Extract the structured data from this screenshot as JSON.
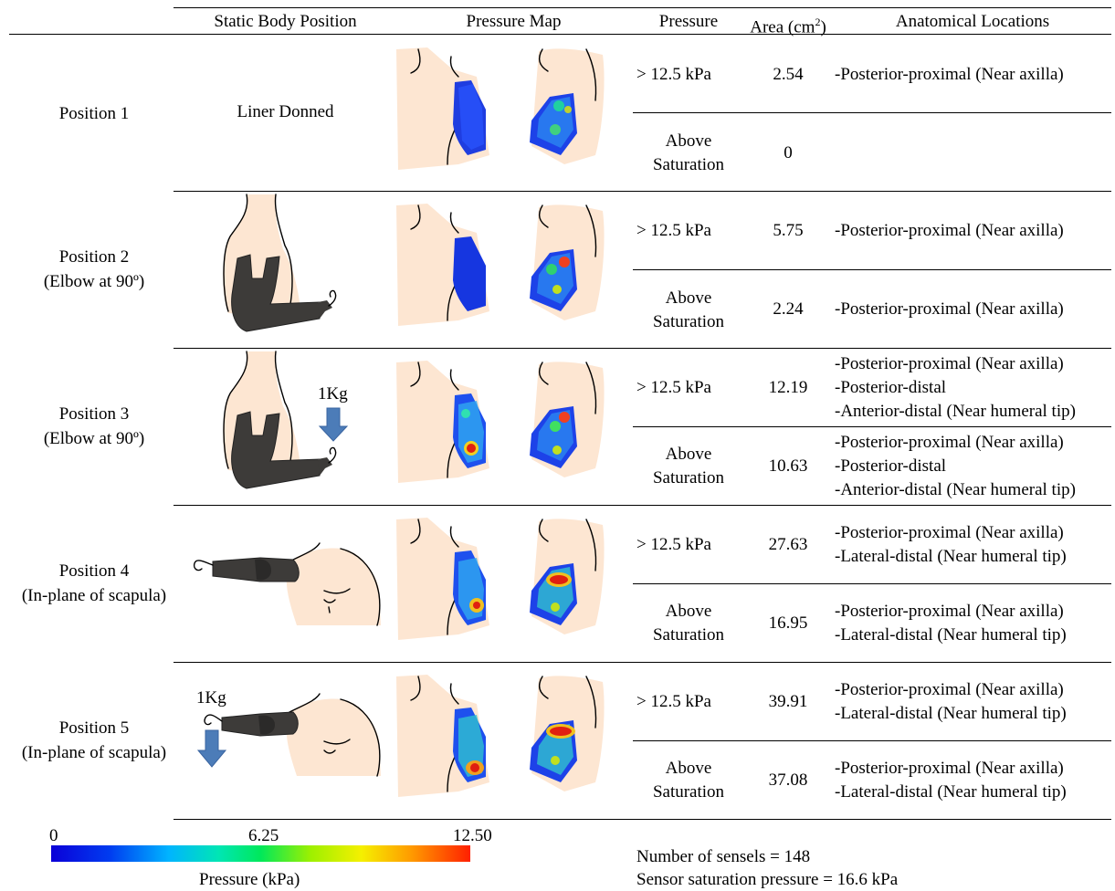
{
  "headers": {
    "static_body_position": "Static Body Position",
    "pressure_map": "Pressure Map",
    "pressure": "Pressure",
    "area_prefix": "Area (cm",
    "area_sup": "2",
    "area_suffix": ")",
    "anatomical_locations": "Anatomical Locations"
  },
  "rows": [
    {
      "position_label": "Position 1",
      "position_sub": "",
      "body_position_text": "Liner Donned",
      "weight_label": "",
      "above": {
        "pressure": "> 12.5 kPa",
        "area": "2.54",
        "locations": [
          "-Posterior-proximal (Near axilla)"
        ]
      },
      "saturation": {
        "pressure_line1": "Above",
        "pressure_line2": "Saturation",
        "area": "0",
        "locations": []
      }
    },
    {
      "position_label": "Position 2",
      "position_sub": "(Elbow at 90º)",
      "body_position_text": "",
      "weight_label": "",
      "above": {
        "pressure": "> 12.5 kPa",
        "area": "5.75",
        "locations": [
          "-Posterior-proximal (Near axilla)"
        ]
      },
      "saturation": {
        "pressure_line1": "Above",
        "pressure_line2": "Saturation",
        "area": "2.24",
        "locations": [
          "-Posterior-proximal (Near axilla)"
        ]
      }
    },
    {
      "position_label": "Position 3",
      "position_sub": "(Elbow at 90º)",
      "body_position_text": "",
      "weight_label": "1Kg",
      "above": {
        "pressure": "> 12.5 kPa",
        "area": "12.19",
        "locations": [
          "-Posterior-proximal (Near axilla)",
          "-Posterior-distal",
          "-Anterior-distal (Near humeral tip)"
        ]
      },
      "saturation": {
        "pressure_line1": "Above",
        "pressure_line2": "Saturation",
        "area": "10.63",
        "locations": [
          "-Posterior-proximal (Near axilla)",
          "-Posterior-distal",
          "-Anterior-distal (Near humeral tip)"
        ]
      }
    },
    {
      "position_label": "Position 4",
      "position_sub": "(In-plane of scapula)",
      "body_position_text": "",
      "weight_label": "",
      "above": {
        "pressure": "> 12.5 kPa",
        "area": "27.63",
        "locations": [
          "-Posterior-proximal (Near axilla)",
          "-Lateral-distal (Near humeral tip)"
        ]
      },
      "saturation": {
        "pressure_line1": "Above",
        "pressure_line2": "Saturation",
        "area": "16.95",
        "locations": [
          "-Posterior-proximal (Near axilla)",
          "-Lateral-distal (Near humeral tip)"
        ]
      }
    },
    {
      "position_label": "Position 5",
      "position_sub": "(In-plane of scapula)",
      "body_position_text": "",
      "weight_label": "1Kg",
      "above": {
        "pressure": "> 12.5 kPa",
        "area": "39.91",
        "locations": [
          "-Posterior-proximal (Near axilla)",
          "-Lateral-distal (Near humeral tip)"
        ]
      },
      "saturation": {
        "pressure_line1": "Above",
        "pressure_line2": "Saturation",
        "area": "37.08",
        "locations": [
          "-Posterior-proximal (Near axilla)",
          "-Lateral-distal (Near humeral tip)"
        ]
      }
    }
  ],
  "colorbar": {
    "min_label": "0",
    "mid_label": "6.25",
    "max_label": "12.50",
    "axis_label": "Pressure (kPa)",
    "min_color": "#0b00d8",
    "max_color": "#ff2000"
  },
  "notes": {
    "sensels": "Number of sensels = 148",
    "saturation": "Sensor saturation pressure = 16.6 kPa"
  },
  "colors": {
    "skin": "#fde6d2",
    "liner": "#3d3b39",
    "arrow": "#4c7cb8"
  }
}
